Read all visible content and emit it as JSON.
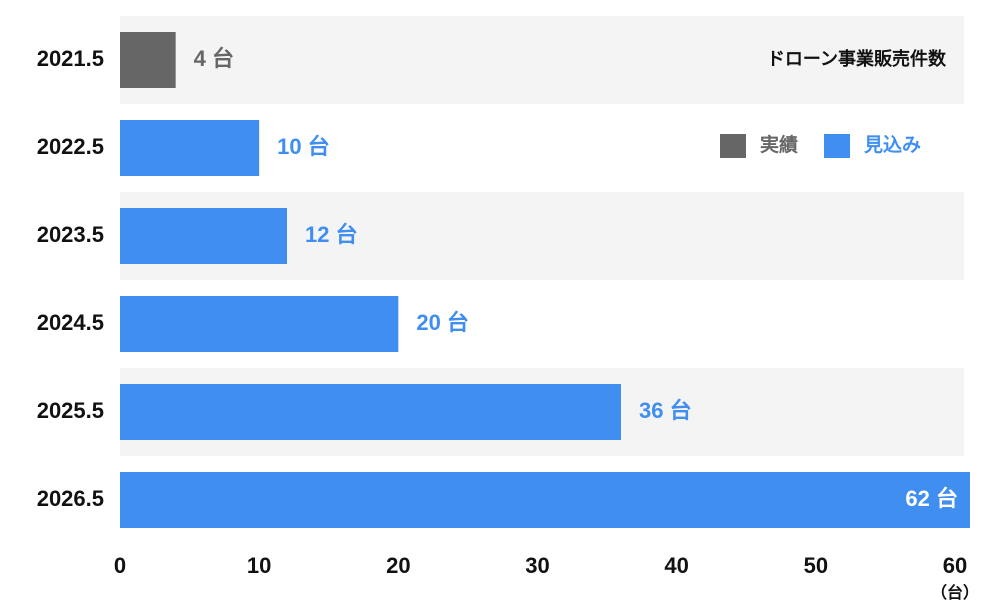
{
  "chart_data": {
    "type": "hbar",
    "title": "ドローン事業販売件数",
    "categories": [
      "2021.5",
      "2022.5",
      "2023.5",
      "2024.5",
      "2025.5",
      "2026.5"
    ],
    "series": [
      {
        "name": "実績",
        "color": "#666666",
        "values": [
          4,
          null,
          null,
          null,
          null,
          null
        ],
        "value_labels": [
          "4 台",
          null,
          null,
          null,
          null,
          null
        ]
      },
      {
        "name": "見込み",
        "color": "#3f8ef0",
        "values": [
          null,
          10,
          12,
          20,
          36,
          62
        ],
        "value_labels": [
          null,
          "10 台",
          "12 台",
          "20 台",
          "36 台",
          "62 台"
        ]
      }
    ],
    "x_label": "（台）",
    "xlim": [
      0,
      60
    ],
    "xticks": [
      0,
      10,
      20,
      30,
      40,
      50,
      60
    ],
    "legend": "top-right"
  }
}
